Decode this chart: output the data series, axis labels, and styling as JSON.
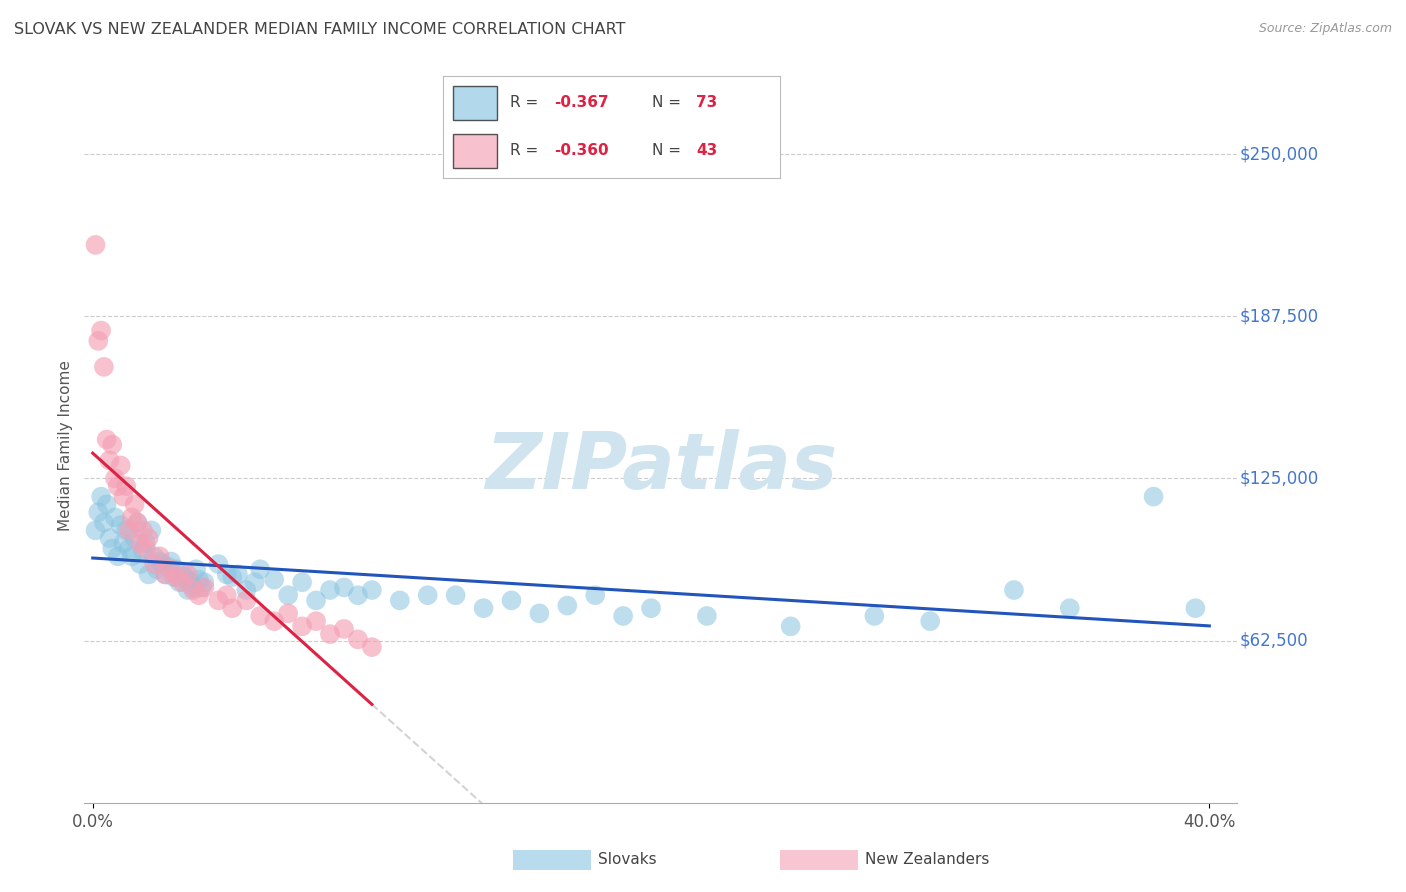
{
  "title": "SLOVAK VS NEW ZEALANDER MEDIAN FAMILY INCOME CORRELATION CHART",
  "source": "Source: ZipAtlas.com",
  "ylabel": "Median Family Income",
  "ytick_labels": [
    "$62,500",
    "$125,000",
    "$187,500",
    "$250,000"
  ],
  "ytick_values": [
    62500,
    125000,
    187500,
    250000
  ],
  "ymin": 0,
  "ymax": 275000,
  "xmin": -0.003,
  "xmax": 0.41,
  "legend_r1": "R = -0.367",
  "legend_n1": "N = 73",
  "legend_r2": "R = -0.360",
  "legend_n2": "N = 43",
  "slovak_color": "#89c4e1",
  "nz_color": "#f4a0b5",
  "trend_slovak_color": "#2255bb",
  "trend_nz_color": "#dd2244",
  "trend_nz_ext_color": "#cccccc",
  "watermark": "ZIPatlas",
  "watermark_color": "#d0e4f0",
  "background_color": "#ffffff",
  "grid_color": "#cccccc",
  "right_label_color": "#4477cc",
  "title_color": "#444444",
  "source_color": "#999999",
  "slovak_points": [
    [
      0.001,
      105000
    ],
    [
      0.002,
      112000
    ],
    [
      0.003,
      118000
    ],
    [
      0.004,
      108000
    ],
    [
      0.005,
      115000
    ],
    [
      0.006,
      102000
    ],
    [
      0.007,
      98000
    ],
    [
      0.008,
      110000
    ],
    [
      0.009,
      95000
    ],
    [
      0.01,
      107000
    ],
    [
      0.011,
      100000
    ],
    [
      0.012,
      105000
    ],
    [
      0.013,
      98000
    ],
    [
      0.014,
      95000
    ],
    [
      0.015,
      102000
    ],
    [
      0.016,
      108000
    ],
    [
      0.017,
      92000
    ],
    [
      0.018,
      97000
    ],
    [
      0.019,
      100000
    ],
    [
      0.02,
      88000
    ],
    [
      0.021,
      105000
    ],
    [
      0.022,
      95000
    ],
    [
      0.023,
      90000
    ],
    [
      0.024,
      93000
    ],
    [
      0.025,
      92000
    ],
    [
      0.026,
      88000
    ],
    [
      0.027,
      91000
    ],
    [
      0.028,
      93000
    ],
    [
      0.029,
      87000
    ],
    [
      0.03,
      90000
    ],
    [
      0.031,
      85000
    ],
    [
      0.032,
      88000
    ],
    [
      0.033,
      87000
    ],
    [
      0.034,
      82000
    ],
    [
      0.035,
      85000
    ],
    [
      0.036,
      83000
    ],
    [
      0.037,
      90000
    ],
    [
      0.038,
      86000
    ],
    [
      0.039,
      83000
    ],
    [
      0.04,
      85000
    ],
    [
      0.045,
      92000
    ],
    [
      0.048,
      88000
    ],
    [
      0.05,
      87000
    ],
    [
      0.052,
      88000
    ],
    [
      0.055,
      82000
    ],
    [
      0.058,
      85000
    ],
    [
      0.06,
      90000
    ],
    [
      0.065,
      86000
    ],
    [
      0.07,
      80000
    ],
    [
      0.075,
      85000
    ],
    [
      0.08,
      78000
    ],
    [
      0.085,
      82000
    ],
    [
      0.09,
      83000
    ],
    [
      0.095,
      80000
    ],
    [
      0.1,
      82000
    ],
    [
      0.11,
      78000
    ],
    [
      0.12,
      80000
    ],
    [
      0.13,
      80000
    ],
    [
      0.14,
      75000
    ],
    [
      0.15,
      78000
    ],
    [
      0.16,
      73000
    ],
    [
      0.17,
      76000
    ],
    [
      0.18,
      80000
    ],
    [
      0.19,
      72000
    ],
    [
      0.2,
      75000
    ],
    [
      0.22,
      72000
    ],
    [
      0.25,
      68000
    ],
    [
      0.28,
      72000
    ],
    [
      0.3,
      70000
    ],
    [
      0.33,
      82000
    ],
    [
      0.35,
      75000
    ],
    [
      0.38,
      118000
    ],
    [
      0.395,
      75000
    ]
  ],
  "nz_points": [
    [
      0.001,
      215000
    ],
    [
      0.002,
      178000
    ],
    [
      0.003,
      182000
    ],
    [
      0.004,
      168000
    ],
    [
      0.005,
      140000
    ],
    [
      0.006,
      132000
    ],
    [
      0.007,
      138000
    ],
    [
      0.008,
      125000
    ],
    [
      0.009,
      122000
    ],
    [
      0.01,
      130000
    ],
    [
      0.011,
      118000
    ],
    [
      0.012,
      122000
    ],
    [
      0.013,
      105000
    ],
    [
      0.014,
      110000
    ],
    [
      0.015,
      115000
    ],
    [
      0.016,
      108000
    ],
    [
      0.017,
      100000
    ],
    [
      0.018,
      105000
    ],
    [
      0.019,
      98000
    ],
    [
      0.02,
      102000
    ],
    [
      0.022,
      92000
    ],
    [
      0.024,
      95000
    ],
    [
      0.026,
      88000
    ],
    [
      0.028,
      90000
    ],
    [
      0.03,
      87000
    ],
    [
      0.032,
      85000
    ],
    [
      0.034,
      88000
    ],
    [
      0.036,
      82000
    ],
    [
      0.038,
      80000
    ],
    [
      0.04,
      83000
    ],
    [
      0.045,
      78000
    ],
    [
      0.048,
      80000
    ],
    [
      0.05,
      75000
    ],
    [
      0.055,
      78000
    ],
    [
      0.06,
      72000
    ],
    [
      0.065,
      70000
    ],
    [
      0.07,
      73000
    ],
    [
      0.075,
      68000
    ],
    [
      0.08,
      70000
    ],
    [
      0.085,
      65000
    ],
    [
      0.09,
      67000
    ],
    [
      0.095,
      63000
    ],
    [
      0.1,
      60000
    ]
  ]
}
